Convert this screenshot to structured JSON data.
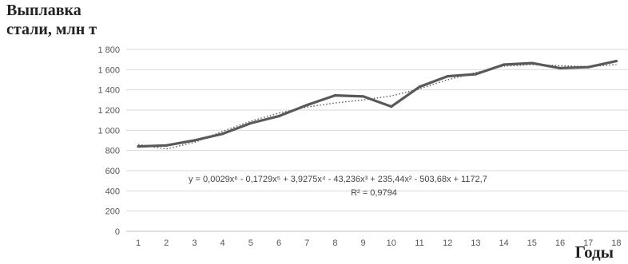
{
  "chart_data": {
    "type": "line",
    "ylabel_lines": [
      "Выплавка",
      "стали, млн т"
    ],
    "xlabel": "Годы",
    "categories": [
      "1",
      "2",
      "3",
      "4",
      "5",
      "6",
      "7",
      "8",
      "9",
      "10",
      "11",
      "12",
      "13",
      "14",
      "15",
      "16",
      "17",
      "18"
    ],
    "series": [
      {
        "values": [
          840,
          850,
          900,
          965,
          1070,
          1140,
          1250,
          1345,
          1335,
          1235,
          1430,
          1535,
          1555,
          1650,
          1665,
          1615,
          1625,
          1685
        ]
      }
    ],
    "trendline": {
      "type": "polynomial-6",
      "style": "dotted",
      "values": [
        860,
        815,
        880,
        990,
        1090,
        1170,
        1230,
        1270,
        1300,
        1340,
        1410,
        1500,
        1570,
        1635,
        1650,
        1640,
        1630,
        1650
      ]
    },
    "equation": "y = 0,0029x⁶ - 0,1729x⁵ + 3,9275x⁴ - 43,236x³ + 235,44x² - 503,68x + 1172,7",
    "r_squared": "R² = 0,9794",
    "ylim": [
      0,
      1800
    ],
    "yticks": [
      0,
      200,
      400,
      600,
      800,
      1000,
      1200,
      1400,
      1600,
      1800
    ],
    "ytick_labels": [
      "0",
      "200",
      "400",
      "600",
      "800",
      "1 000",
      "1 200",
      "1 400",
      "1 600",
      "1 800"
    ],
    "grid": true,
    "colors": {
      "series": "#595959",
      "trend": "#595959",
      "grid": "#d9d9d9",
      "axis": "#bfbfbf"
    }
  }
}
